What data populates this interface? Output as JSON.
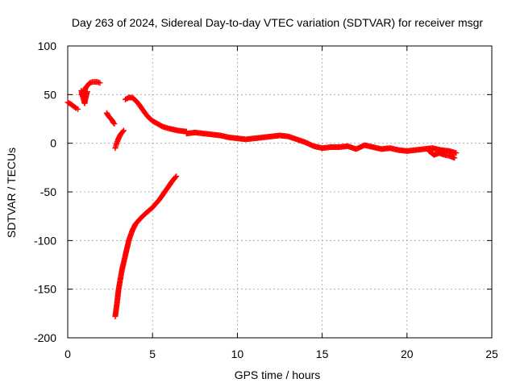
{
  "chart_data": {
    "type": "scatter",
    "title": "Day 263 of 2024, Sidereal Day-to-day VTEC variation (SDTVAR) for receiver msgr",
    "xlabel": "GPS time / hours",
    "ylabel": "SDTVAR / TECUs",
    "xlim": [
      0,
      25
    ],
    "ylim": [
      -200,
      100
    ],
    "xticks": [
      0,
      5,
      10,
      15,
      20,
      25
    ],
    "yticks": [
      -200,
      -150,
      -100,
      -50,
      0,
      50,
      100
    ],
    "xtick_labels": [
      "0",
      "5",
      "10",
      "15",
      "20",
      "25"
    ],
    "ytick_labels": [
      "-200",
      "-150",
      "-100",
      "-50",
      "0",
      "50",
      "100"
    ],
    "grid": true,
    "marker": "+",
    "color": "#ff0000",
    "series": [
      {
        "name": "sdtvar",
        "segments": [
          [
            [
              0.0,
              42
            ],
            [
              0.2,
              40
            ],
            [
              0.35,
              38
            ],
            [
              0.5,
              36
            ],
            [
              0.6,
              35
            ]
          ],
          [
            [
              0.8,
              50
            ],
            [
              0.9,
              52
            ],
            [
              1.0,
              55
            ],
            [
              1.1,
              58
            ],
            [
              1.2,
              60
            ],
            [
              1.3,
              62
            ],
            [
              1.45,
              63
            ],
            [
              1.6,
              63
            ],
            [
              1.75,
              63
            ],
            [
              1.9,
              62
            ]
          ],
          [
            [
              0.8,
              54
            ],
            [
              0.9,
              47
            ],
            [
              1.0,
              41
            ],
            [
              1.05,
              46
            ],
            [
              1.15,
              53
            ]
          ],
          [
            [
              2.3,
              31
            ],
            [
              2.4,
              28
            ],
            [
              2.5,
              26
            ],
            [
              2.6,
              24
            ],
            [
              2.7,
              21
            ],
            [
              2.75,
              20
            ]
          ],
          [
            [
              2.8,
              -5
            ],
            [
              2.85,
              -2
            ],
            [
              2.95,
              3
            ],
            [
              3.05,
              7
            ],
            [
              3.15,
              10
            ],
            [
              3.3,
              13
            ]
          ],
          [
            [
              2.8,
              -178
            ],
            [
              2.9,
              -165
            ],
            [
              3.0,
              -150
            ],
            [
              3.2,
              -130
            ],
            [
              3.4,
              -115
            ],
            [
              3.6,
              -100
            ],
            [
              3.8,
              -90
            ],
            [
              4.0,
              -83
            ],
            [
              4.3,
              -77
            ],
            [
              4.6,
              -72
            ],
            [
              5.0,
              -66
            ],
            [
              5.4,
              -58
            ],
            [
              5.8,
              -48
            ],
            [
              6.2,
              -38
            ],
            [
              6.4,
              -34
            ]
          ],
          [
            [
              3.4,
              45
            ],
            [
              3.6,
              47
            ],
            [
              3.8,
              47
            ],
            [
              4.0,
              44
            ],
            [
              4.2,
              40
            ],
            [
              4.4,
              35
            ],
            [
              4.6,
              30
            ],
            [
              4.8,
              26
            ],
            [
              5.0,
              23
            ],
            [
              5.3,
              20
            ],
            [
              5.6,
              17
            ],
            [
              6.0,
              15
            ],
            [
              6.5,
              13
            ],
            [
              7.0,
              12
            ]
          ],
          [
            [
              7.0,
              10
            ],
            [
              7.5,
              11
            ],
            [
              8.0,
              10
            ],
            [
              8.5,
              9
            ],
            [
              9.0,
              8
            ],
            [
              9.5,
              6
            ],
            [
              10.0,
              5
            ],
            [
              10.5,
              4
            ],
            [
              11.0,
              5
            ],
            [
              11.5,
              6
            ],
            [
              12.0,
              7
            ],
            [
              12.5,
              8
            ],
            [
              13.0,
              7
            ],
            [
              13.5,
              4
            ],
            [
              14.0,
              1
            ],
            [
              14.5,
              -3
            ],
            [
              15.0,
              -5
            ],
            [
              15.5,
              -4
            ],
            [
              16.0,
              -4
            ],
            [
              16.5,
              -3
            ],
            [
              17.0,
              -6
            ],
            [
              17.5,
              -2
            ],
            [
              18.0,
              -4
            ],
            [
              18.5,
              -6
            ],
            [
              19.0,
              -5
            ],
            [
              19.5,
              -7
            ],
            [
              20.0,
              -8
            ],
            [
              20.5,
              -7
            ],
            [
              21.0,
              -6
            ],
            [
              21.5,
              -5
            ],
            [
              22.0,
              -7
            ],
            [
              22.5,
              -8
            ],
            [
              22.9,
              -10
            ]
          ],
          [
            [
              21.3,
              -8
            ],
            [
              21.6,
              -12
            ],
            [
              21.9,
              -10
            ],
            [
              22.2,
              -12
            ],
            [
              22.5,
              -13
            ],
            [
              22.8,
              -15
            ]
          ]
        ]
      }
    ]
  }
}
